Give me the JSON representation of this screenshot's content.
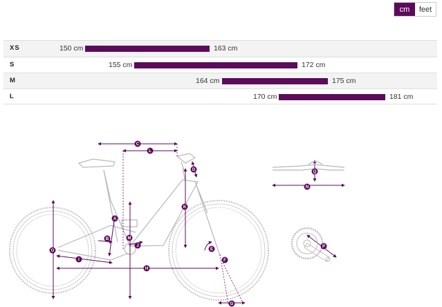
{
  "units": {
    "options": [
      {
        "label": "cm",
        "active": true
      },
      {
        "label": "feet",
        "active": false
      }
    ]
  },
  "sizes": [
    {
      "size": "XS",
      "min": "150 cm",
      "max": "163 cm"
    },
    {
      "size": "S",
      "min": "155 cm",
      "max": "172 cm"
    },
    {
      "size": "M",
      "min": "164 cm",
      "max": "175 cm"
    },
    {
      "size": "L",
      "min": "170 cm",
      "max": "181 cm"
    }
  ],
  "geometry_labels": [
    "A",
    "B",
    "C",
    "D",
    "E",
    "F",
    "G",
    "H",
    "I",
    "J",
    "K",
    "L",
    "M",
    "N",
    "O",
    "P",
    "Q"
  ],
  "colors": {
    "accent": "#5c0a5a",
    "line_art": "#bdbdbd",
    "row_alt": "#f3f3f3"
  }
}
